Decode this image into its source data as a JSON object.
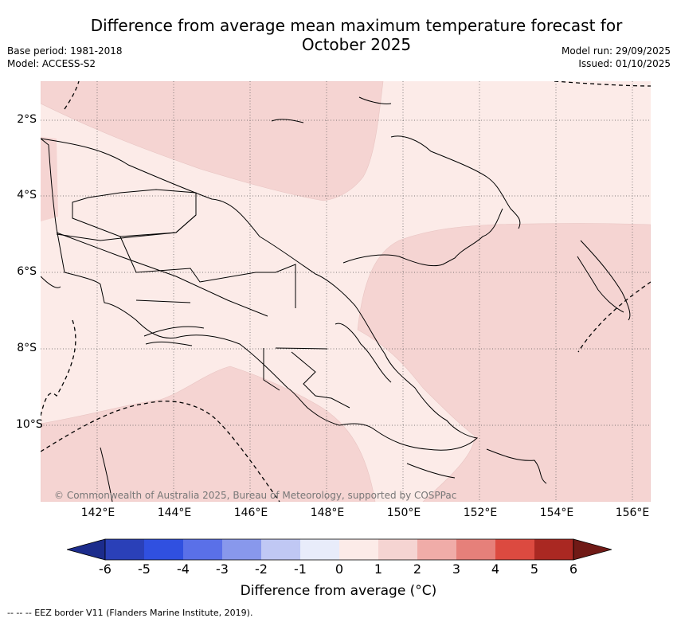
{
  "header": {
    "title_line1": "Difference from average mean maximum temperature forecast for",
    "title_line2": "October 2025",
    "base_period": "Base period: 1981-2018",
    "model": "Model: ACCESS-S2",
    "model_run": "Model run: 29/09/2025",
    "issued": "Issued: 01/10/2025"
  },
  "map": {
    "longitude_ticks": [
      "142°E",
      "144°E",
      "146°E",
      "148°E",
      "150°E",
      "152°E",
      "154°E",
      "156°E"
    ],
    "latitude_ticks": [
      "2°S",
      "4°S",
      "6°S",
      "8°S",
      "10°S"
    ],
    "copyright": "© Commonwealth of Australia 2025, Bureau of Meteorology, supported by COSPPac",
    "colors": {
      "anomaly_0_1": "#fcebe8",
      "anomaly_1_2": "#f5d4d2",
      "land_outline": "#000000",
      "eez": "#000000"
    }
  },
  "colorbar": {
    "ticks": [
      "-6",
      "-5",
      "-4",
      "-3",
      "-2",
      "-1",
      "0",
      "1",
      "2",
      "3",
      "4",
      "5",
      "6"
    ],
    "colors": [
      "#1c2c8c",
      "#2a40b8",
      "#3050e0",
      "#5a70e8",
      "#8898ec",
      "#c0c8f4",
      "#e8ecfa",
      "#fcebe8",
      "#f5d4d2",
      "#f0aca8",
      "#e6807a",
      "#dc4a40",
      "#aa2822",
      "#701a16"
    ],
    "label": "Difference from average (°C)"
  },
  "footnote": "-- -- -- EEZ border V11 (Flanders Marine Institute, 2019)."
}
